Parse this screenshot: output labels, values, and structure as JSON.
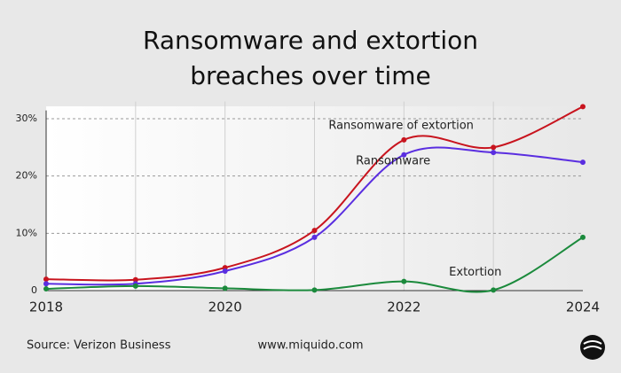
{
  "chart_data": {
    "type": "line",
    "title": "Ransomware and extortion breaches over time",
    "x": [
      2018,
      2019,
      2020,
      2021,
      2022,
      2023,
      2024
    ],
    "series": [
      {
        "name": "Ransomware of extortion",
        "color": "#c8141e",
        "values": [
          2.0,
          1.9,
          4.0,
          10.5,
          26.3,
          25.0,
          32.1
        ]
      },
      {
        "name": "Ransomware",
        "color": "#5a2ee0",
        "values": [
          1.2,
          1.2,
          3.4,
          9.3,
          23.7,
          24.1,
          22.4
        ]
      },
      {
        "name": "Extortion",
        "color": "#1b8a3c",
        "values": [
          0.3,
          0.8,
          0.4,
          0.1,
          1.6,
          0.1,
          9.3
        ]
      }
    ],
    "xlim": [
      2018,
      2024
    ],
    "xticks": [
      2018,
      2020,
      2022,
      2024
    ],
    "xgrid": [
      2019,
      2020,
      2021,
      2022,
      2023
    ],
    "ylim": [
      0,
      33
    ],
    "yticks": [
      0,
      {
        "value": 10,
        "label": "10%"
      },
      {
        "value": 20,
        "label": "20%"
      },
      {
        "value": 30,
        "label": "30%"
      }
    ],
    "source": "Source: Verizon Business",
    "website": "www.miquido.com"
  }
}
